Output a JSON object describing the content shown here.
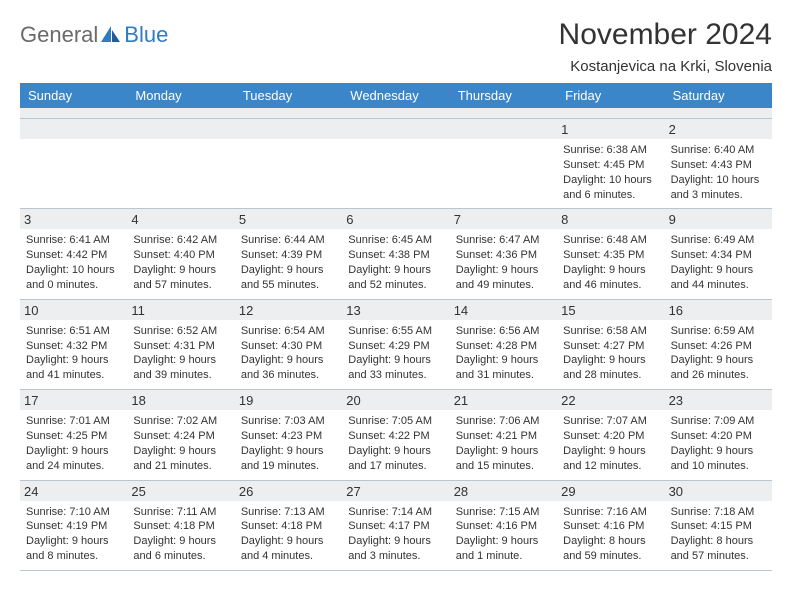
{
  "brand": {
    "word1": "General",
    "word2": "Blue"
  },
  "title": "November 2024",
  "location": "Kostanjevica na Krki, Slovenia",
  "colors": {
    "header_bg": "#3a86c8",
    "header_text": "#ffffff",
    "daynum_bg": "#eceef0",
    "text": "#333333",
    "rule": "#b9c5cf",
    "logo_gray": "#6b6b6b",
    "logo_blue": "#2e7cc1"
  },
  "days_of_week": [
    "Sunday",
    "Monday",
    "Tuesday",
    "Wednesday",
    "Thursday",
    "Friday",
    "Saturday"
  ],
  "weeks": [
    [
      null,
      null,
      null,
      null,
      null,
      {
        "n": "1",
        "sr": "Sunrise: 6:38 AM",
        "ss": "Sunset: 4:45 PM",
        "dl": "Daylight: 10 hours and 6 minutes."
      },
      {
        "n": "2",
        "sr": "Sunrise: 6:40 AM",
        "ss": "Sunset: 4:43 PM",
        "dl": "Daylight: 10 hours and 3 minutes."
      }
    ],
    [
      {
        "n": "3",
        "sr": "Sunrise: 6:41 AM",
        "ss": "Sunset: 4:42 PM",
        "dl": "Daylight: 10 hours and 0 minutes."
      },
      {
        "n": "4",
        "sr": "Sunrise: 6:42 AM",
        "ss": "Sunset: 4:40 PM",
        "dl": "Daylight: 9 hours and 57 minutes."
      },
      {
        "n": "5",
        "sr": "Sunrise: 6:44 AM",
        "ss": "Sunset: 4:39 PM",
        "dl": "Daylight: 9 hours and 55 minutes."
      },
      {
        "n": "6",
        "sr": "Sunrise: 6:45 AM",
        "ss": "Sunset: 4:38 PM",
        "dl": "Daylight: 9 hours and 52 minutes."
      },
      {
        "n": "7",
        "sr": "Sunrise: 6:47 AM",
        "ss": "Sunset: 4:36 PM",
        "dl": "Daylight: 9 hours and 49 minutes."
      },
      {
        "n": "8",
        "sr": "Sunrise: 6:48 AM",
        "ss": "Sunset: 4:35 PM",
        "dl": "Daylight: 9 hours and 46 minutes."
      },
      {
        "n": "9",
        "sr": "Sunrise: 6:49 AM",
        "ss": "Sunset: 4:34 PM",
        "dl": "Daylight: 9 hours and 44 minutes."
      }
    ],
    [
      {
        "n": "10",
        "sr": "Sunrise: 6:51 AM",
        "ss": "Sunset: 4:32 PM",
        "dl": "Daylight: 9 hours and 41 minutes."
      },
      {
        "n": "11",
        "sr": "Sunrise: 6:52 AM",
        "ss": "Sunset: 4:31 PM",
        "dl": "Daylight: 9 hours and 39 minutes."
      },
      {
        "n": "12",
        "sr": "Sunrise: 6:54 AM",
        "ss": "Sunset: 4:30 PM",
        "dl": "Daylight: 9 hours and 36 minutes."
      },
      {
        "n": "13",
        "sr": "Sunrise: 6:55 AM",
        "ss": "Sunset: 4:29 PM",
        "dl": "Daylight: 9 hours and 33 minutes."
      },
      {
        "n": "14",
        "sr": "Sunrise: 6:56 AM",
        "ss": "Sunset: 4:28 PM",
        "dl": "Daylight: 9 hours and 31 minutes."
      },
      {
        "n": "15",
        "sr": "Sunrise: 6:58 AM",
        "ss": "Sunset: 4:27 PM",
        "dl": "Daylight: 9 hours and 28 minutes."
      },
      {
        "n": "16",
        "sr": "Sunrise: 6:59 AM",
        "ss": "Sunset: 4:26 PM",
        "dl": "Daylight: 9 hours and 26 minutes."
      }
    ],
    [
      {
        "n": "17",
        "sr": "Sunrise: 7:01 AM",
        "ss": "Sunset: 4:25 PM",
        "dl": "Daylight: 9 hours and 24 minutes."
      },
      {
        "n": "18",
        "sr": "Sunrise: 7:02 AM",
        "ss": "Sunset: 4:24 PM",
        "dl": "Daylight: 9 hours and 21 minutes."
      },
      {
        "n": "19",
        "sr": "Sunrise: 7:03 AM",
        "ss": "Sunset: 4:23 PM",
        "dl": "Daylight: 9 hours and 19 minutes."
      },
      {
        "n": "20",
        "sr": "Sunrise: 7:05 AM",
        "ss": "Sunset: 4:22 PM",
        "dl": "Daylight: 9 hours and 17 minutes."
      },
      {
        "n": "21",
        "sr": "Sunrise: 7:06 AM",
        "ss": "Sunset: 4:21 PM",
        "dl": "Daylight: 9 hours and 15 minutes."
      },
      {
        "n": "22",
        "sr": "Sunrise: 7:07 AM",
        "ss": "Sunset: 4:20 PM",
        "dl": "Daylight: 9 hours and 12 minutes."
      },
      {
        "n": "23",
        "sr": "Sunrise: 7:09 AM",
        "ss": "Sunset: 4:20 PM",
        "dl": "Daylight: 9 hours and 10 minutes."
      }
    ],
    [
      {
        "n": "24",
        "sr": "Sunrise: 7:10 AM",
        "ss": "Sunset: 4:19 PM",
        "dl": "Daylight: 9 hours and 8 minutes."
      },
      {
        "n": "25",
        "sr": "Sunrise: 7:11 AM",
        "ss": "Sunset: 4:18 PM",
        "dl": "Daylight: 9 hours and 6 minutes."
      },
      {
        "n": "26",
        "sr": "Sunrise: 7:13 AM",
        "ss": "Sunset: 4:18 PM",
        "dl": "Daylight: 9 hours and 4 minutes."
      },
      {
        "n": "27",
        "sr": "Sunrise: 7:14 AM",
        "ss": "Sunset: 4:17 PM",
        "dl": "Daylight: 9 hours and 3 minutes."
      },
      {
        "n": "28",
        "sr": "Sunrise: 7:15 AM",
        "ss": "Sunset: 4:16 PM",
        "dl": "Daylight: 9 hours and 1 minute."
      },
      {
        "n": "29",
        "sr": "Sunrise: 7:16 AM",
        "ss": "Sunset: 4:16 PM",
        "dl": "Daylight: 8 hours and 59 minutes."
      },
      {
        "n": "30",
        "sr": "Sunrise: 7:18 AM",
        "ss": "Sunset: 4:15 PM",
        "dl": "Daylight: 8 hours and 57 minutes."
      }
    ]
  ]
}
